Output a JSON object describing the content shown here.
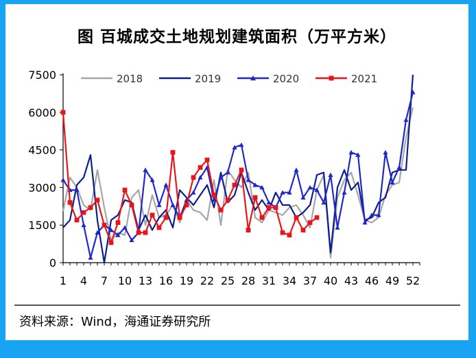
{
  "page": {
    "title": "图  百城成交土地规划建筑面积（万平方米）",
    "source": "资料来源：Wind，海通证券研究所",
    "background": "#18a4f2"
  },
  "chart_data": {
    "type": "line",
    "title": "图  百城成交土地规划建筑面积（万平方米）",
    "xlabel": "",
    "ylabel": "",
    "ylim": [
      0,
      7500
    ],
    "y_ticks": [
      0,
      1500,
      3000,
      4500,
      6000,
      7500
    ],
    "x_ticks": [
      1,
      4,
      7,
      10,
      13,
      16,
      19,
      22,
      25,
      28,
      31,
      34,
      37,
      40,
      43,
      46,
      49,
      52
    ],
    "xlim": [
      1,
      53
    ],
    "legend_position": "top",
    "grid": false,
    "series": [
      {
        "name": "2018",
        "color": "#a6a6a6",
        "marker": "none",
        "values": [
          2050,
          3400,
          3000,
          2300,
          2100,
          3700,
          2200,
          900,
          1200,
          1100,
          2600,
          2900,
          1500,
          2700,
          1800,
          1900,
          2300,
          1600,
          2500,
          2100,
          2000,
          1700,
          3300,
          1500,
          3700,
          3300,
          3000,
          3600,
          1800,
          1600,
          2100,
          2000,
          1900,
          2200,
          2300,
          1900,
          1400,
          2900,
          3500,
          200,
          2600,
          3300,
          3600,
          2700,
          1700,
          1600,
          1800,
          2700,
          3100,
          3200,
          5000,
          6200
        ]
      },
      {
        "name": "2019",
        "color": "#0b1f8a",
        "marker": "none",
        "values": [
          1400,
          1700,
          3100,
          3400,
          4300,
          1700,
          0,
          1700,
          1900,
          2500,
          2400,
          1300,
          1900,
          1300,
          1800,
          2100,
          1400,
          2900,
          2600,
          2300,
          2700,
          3100,
          2200,
          3600,
          2400,
          2700,
          3600,
          2800,
          2100,
          2500,
          2100,
          2800,
          2300,
          2300,
          1800,
          2000,
          2300,
          3500,
          3600,
          400,
          3000,
          3700,
          2900,
          3200,
          1700,
          1800,
          2400,
          2600,
          3600,
          3700,
          3700,
          7500
        ]
      },
      {
        "name": "2020",
        "color": "#1f27c9",
        "marker": "triangle",
        "values": [
          3300,
          2900,
          2900,
          1500,
          200,
          1200,
          1500,
          1300,
          1100,
          1400,
          900,
          1200,
          3700,
          3300,
          2300,
          3100,
          2300,
          1800,
          2500,
          2800,
          3400,
          3800,
          2500,
          3400,
          3600,
          4600,
          4700,
          3300,
          3100,
          3000,
          2400,
          2200,
          2800,
          2800,
          3700,
          2600,
          3000,
          2900,
          2400,
          3500,
          1400,
          2800,
          4400,
          4300,
          1600,
          1900,
          1900,
          4400,
          3200,
          3800,
          5700,
          6800
        ]
      },
      {
        "name": "2021",
        "color": "#e8161b",
        "marker": "square",
        "values": [
          6000,
          2400,
          1700,
          2000,
          2200,
          2500,
          1500,
          800,
          1600,
          2900,
          2300,
          1200,
          1200,
          1900,
          1400,
          1800,
          4400,
          1800,
          2300,
          3400,
          3800,
          4100,
          2700,
          2100,
          2500,
          3100,
          3700,
          1300,
          2600,
          1800,
          2200,
          2200,
          1200,
          1100,
          1800,
          1300,
          1600,
          1800
        ]
      }
    ]
  }
}
